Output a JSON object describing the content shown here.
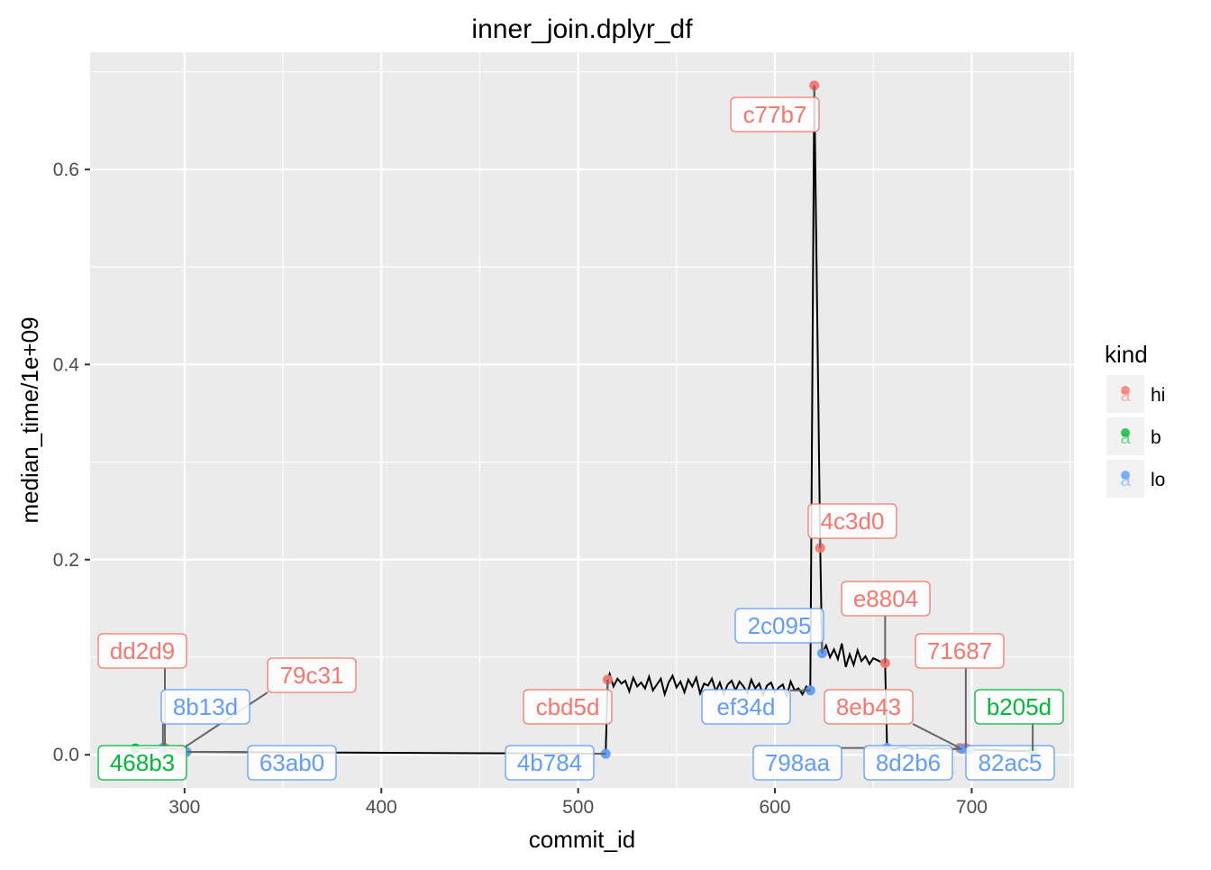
{
  "chart_data": {
    "type": "line",
    "title": "inner_join.dplyr_df",
    "xlabel": "commit_id",
    "ylabel": "median_time/1e+09",
    "xlim": [
      252,
      752
    ],
    "ylim": [
      -0.034,
      0.72
    ],
    "x_ticks": [
      300,
      400,
      500,
      600,
      700
    ],
    "x_tick_labels": [
      "300",
      "400",
      "500",
      "600",
      "700"
    ],
    "y_ticks": [
      0.0,
      0.2,
      0.4,
      0.6
    ],
    "y_tick_labels": [
      "0.0",
      "0.2",
      "0.4",
      "0.6"
    ],
    "grid": true,
    "legend": {
      "title": "kind",
      "position": "right",
      "entries": [
        {
          "label": "hi",
          "color": "#F8766D"
        },
        {
          "label": "b",
          "color": "#00BA38"
        },
        {
          "label": "lo",
          "color": "#619CFF"
        }
      ]
    },
    "series": [
      {
        "kind": "median_time",
        "color": "#000000",
        "x": [
          275,
          290,
          300,
          301,
          514,
          515,
          516,
          518,
          520,
          522,
          524,
          526,
          528,
          530,
          532,
          534,
          536,
          538,
          540,
          542,
          544,
          546,
          548,
          550,
          552,
          554,
          556,
          558,
          560,
          562,
          564,
          566,
          568,
          570,
          572,
          574,
          576,
          578,
          580,
          582,
          584,
          586,
          588,
          590,
          592,
          594,
          596,
          598,
          600,
          602,
          604,
          606,
          608,
          610,
          612,
          614,
          616,
          618,
          620,
          623,
          624,
          626,
          628,
          630,
          632,
          634,
          636,
          638,
          640,
          642,
          644,
          646,
          648,
          650,
          652,
          654,
          656,
          657,
          660,
          665,
          670,
          675,
          680,
          685,
          690,
          694,
          695,
          697,
          699,
          705,
          710,
          720,
          731
        ],
        "y": [
          0.0065,
          0.007,
          0.005,
          0.003,
          0.001,
          0.077,
          0.083,
          0.07,
          0.078,
          0.073,
          0.076,
          0.065,
          0.079,
          0.07,
          0.074,
          0.068,
          0.08,
          0.066,
          0.072,
          0.078,
          0.062,
          0.074,
          0.081,
          0.069,
          0.075,
          0.064,
          0.077,
          0.07,
          0.079,
          0.063,
          0.073,
          0.071,
          0.078,
          0.065,
          0.074,
          0.062,
          0.072,
          0.076,
          0.066,
          0.075,
          0.07,
          0.063,
          0.077,
          0.068,
          0.073,
          0.061,
          0.071,
          0.074,
          0.064,
          0.069,
          0.072,
          0.06,
          0.075,
          0.066,
          0.068,
          0.062,
          0.07,
          0.066,
          0.686,
          0.212,
          0.104,
          0.112,
          0.1,
          0.108,
          0.098,
          0.114,
          0.09,
          0.103,
          0.092,
          0.107,
          0.096,
          0.101,
          0.093,
          0.099,
          0.097,
          0.095,
          0.094,
          0.007,
          0.006,
          0.008,
          0.006,
          0.007,
          0.006,
          0.007,
          0.006,
          0.006,
          0.007,
          0.005,
          0.005,
          0.005,
          0.005,
          0.004,
          0.004
        ]
      }
    ],
    "points": [
      {
        "label": "c77b7",
        "kind": "hi",
        "x": 620,
        "y": 0.686
      },
      {
        "label": "4c3d0",
        "kind": "hi",
        "x": 623,
        "y": 0.212
      },
      {
        "label": "e8804",
        "kind": "hi",
        "x": 656,
        "y": 0.094
      },
      {
        "label": "cbd5d",
        "kind": "hi",
        "x": 515,
        "y": 0.077
      },
      {
        "label": "71687",
        "kind": "hi",
        "x": 697,
        "y": 0.007
      },
      {
        "label": "8eb43",
        "kind": "hi",
        "x": 694,
        "y": 0.007
      },
      {
        "label": "dd2d9",
        "kind": "hi",
        "x": 290,
        "y": 0.007
      },
      {
        "label": "79c31",
        "kind": "hi",
        "x": 298,
        "y": 0.005
      },
      {
        "label": "2c095",
        "kind": "lo",
        "x": 624,
        "y": 0.104
      },
      {
        "label": "ef34d",
        "kind": "lo",
        "x": 618,
        "y": 0.066
      },
      {
        "label": "4b784",
        "kind": "lo",
        "x": 514,
        "y": 0.001
      },
      {
        "label": "798aa",
        "kind": "lo",
        "x": 657,
        "y": 0.007
      },
      {
        "label": "8d2b6",
        "kind": "lo",
        "x": 695,
        "y": 0.006
      },
      {
        "label": "82ac5",
        "kind": "lo",
        "x": 699,
        "y": 0.005
      },
      {
        "label": "8b13d",
        "kind": "lo",
        "x": 289,
        "y": 0.007
      },
      {
        "label": "63ab0",
        "kind": "lo",
        "x": 301,
        "y": 0.003
      },
      {
        "label": "b205d",
        "kind": "b",
        "x": 731,
        "y": 0.004
      },
      {
        "label": "468b3",
        "kind": "b",
        "x": 275,
        "y": 0.0065
      }
    ]
  }
}
